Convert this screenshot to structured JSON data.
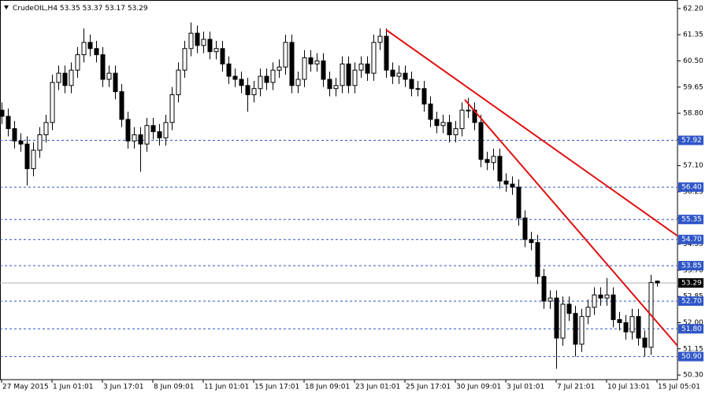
{
  "chart_data": {
    "type": "candlestick",
    "title": "CrudeOIL,H4",
    "categories": [
      "27 May 2015",
      null,
      null,
      null,
      null,
      null,
      null,
      null,
      "1 Jun 01:01",
      null,
      null,
      null,
      null,
      null,
      null,
      null,
      "3 Jun 17:01",
      null,
      null,
      null,
      null,
      null,
      null,
      null,
      "8 Jun 09:01",
      null,
      null,
      null,
      null,
      null,
      null,
      null,
      "11 Jun 01:01",
      null,
      null,
      null,
      null,
      null,
      null,
      null,
      "15 Jun 17:01",
      null,
      null,
      null,
      null,
      null,
      null,
      null,
      "18 Jun 09:01",
      null,
      null,
      null,
      null,
      null,
      null,
      null,
      "23 Jun 01:01",
      null,
      null,
      null,
      null,
      null,
      null,
      null,
      "25 Jun 17:01",
      null,
      null,
      null,
      null,
      null,
      null,
      null,
      "30 Jun 09:01",
      null,
      null,
      null,
      null,
      null,
      null,
      null,
      "3 Jul 01:01",
      null,
      null,
      null,
      null,
      null,
      null,
      null,
      "7 Jul 21:01",
      null,
      null,
      null,
      null,
      null,
      null,
      null,
      "10 Jul 13:01",
      null,
      null,
      null,
      null,
      null,
      null,
      null,
      "15 Jul 05:01"
    ],
    "open": [
      58.9,
      58.7,
      58.3,
      57.9,
      57.8,
      57.0,
      57.6,
      58.1,
      58.5,
      59.8,
      60.1,
      59.7,
      60.2,
      60.7,
      61.1,
      60.9,
      60.7,
      59.9,
      60.1,
      59.5,
      58.6,
      57.9,
      58.1,
      57.8,
      58.4,
      58.2,
      58.0,
      58.5,
      59.4,
      60.2,
      60.9,
      61.4,
      61.0,
      61.2,
      60.8,
      60.9,
      60.4,
      60.0,
      59.9,
      59.7,
      59.4,
      59.6,
      60.0,
      59.8,
      60.2,
      60.3,
      61.1,
      59.7,
      59.9,
      60.6,
      60.4,
      60.5,
      59.9,
      59.6,
      59.7,
      60.4,
      59.7,
      60.2,
      60.4,
      60.1,
      61.1,
      61.3,
      60.2,
      60.0,
      60.1,
      59.9,
      59.6,
      59.6,
      59.1,
      58.6,
      58.4,
      58.5,
      58.1,
      58.3,
      58.9,
      58.9,
      58.5,
      57.3,
      57.2,
      57.4,
      56.6,
      56.5,
      56.4,
      55.4,
      54.7,
      54.6,
      53.5,
      52.7,
      52.8,
      51.5,
      52.6,
      52.3,
      51.3,
      52.2,
      52.5,
      52.9,
      52.8,
      52.9,
      52.1,
      52.0,
      51.7,
      52.2,
      51.5,
      51.2,
      53.35
    ],
    "high": [
      59.15,
      58.95,
      58.55,
      58.15,
      58.05,
      57.85,
      58.35,
      58.75,
      60.05,
      60.35,
      60.35,
      60.45,
      60.95,
      61.55,
      61.35,
      61.15,
      60.95,
      60.35,
      60.35,
      59.75,
      58.85,
      58.35,
      58.35,
      58.65,
      58.65,
      58.45,
      58.75,
      59.65,
      60.45,
      61.15,
      61.75,
      61.65,
      61.45,
      61.45,
      61.15,
      61.15,
      60.65,
      60.25,
      60.15,
      59.95,
      59.85,
      60.25,
      60.25,
      60.45,
      60.55,
      61.35,
      61.35,
      60.15,
      60.85,
      60.85,
      60.75,
      60.75,
      60.15,
      59.95,
      60.65,
      60.65,
      60.45,
      60.65,
      60.65,
      61.35,
      61.55,
      61.55,
      60.45,
      60.35,
      60.35,
      60.15,
      59.85,
      59.85,
      59.35,
      58.85,
      58.75,
      58.75,
      58.55,
      59.15,
      59.3,
      59.15,
      58.75,
      57.55,
      57.65,
      57.65,
      56.85,
      56.75,
      56.65,
      55.65,
      54.95,
      54.85,
      53.75,
      53.05,
      53.05,
      52.85,
      52.85,
      52.55,
      52.45,
      52.75,
      53.15,
      53.15,
      53.45,
      53.15,
      52.35,
      52.25,
      52.45,
      52.45,
      51.75,
      53.55,
      53.37
    ],
    "low": [
      58.45,
      58.05,
      57.65,
      57.55,
      56.45,
      56.75,
      57.35,
      57.85,
      58.25,
      59.55,
      59.45,
      59.45,
      59.95,
      60.45,
      60.65,
      60.45,
      59.65,
      59.65,
      59.25,
      58.35,
      57.65,
      57.65,
      56.9,
      57.55,
      57.95,
      57.75,
      57.75,
      58.25,
      59.15,
      59.95,
      60.65,
      60.75,
      60.75,
      60.55,
      60.55,
      60.15,
      59.75,
      59.65,
      59.45,
      58.85,
      59.15,
      59.35,
      59.55,
      59.55,
      59.95,
      60.05,
      59.45,
      59.45,
      59.65,
      60.15,
      60.15,
      59.65,
      59.35,
      59.35,
      59.45,
      59.45,
      59.45,
      59.95,
      59.85,
      59.85,
      60.85,
      59.95,
      59.75,
      59.75,
      59.65,
      59.35,
      59.35,
      58.85,
      58.35,
      58.15,
      58.15,
      57.85,
      57.85,
      58.05,
      58.65,
      58.25,
      57.05,
      56.95,
      56.95,
      56.35,
      56.25,
      56.15,
      55.15,
      54.45,
      54.35,
      53.25,
      52.45,
      52.45,
      50.5,
      51.25,
      52.05,
      50.9,
      51.05,
      51.95,
      52.25,
      52.55,
      52.55,
      51.85,
      51.75,
      51.45,
      51.45,
      51.25,
      50.9,
      50.95,
      53.17
    ],
    "close": [
      58.7,
      58.3,
      57.9,
      57.8,
      57.0,
      57.6,
      58.1,
      58.5,
      59.8,
      60.1,
      59.7,
      60.2,
      60.7,
      61.1,
      60.9,
      60.7,
      59.9,
      60.1,
      59.5,
      58.6,
      57.9,
      58.1,
      57.8,
      58.4,
      58.2,
      58.0,
      58.5,
      59.4,
      60.2,
      60.9,
      61.4,
      61.0,
      61.2,
      60.8,
      60.9,
      60.4,
      60.0,
      59.9,
      59.7,
      59.4,
      59.6,
      60.0,
      59.8,
      60.2,
      60.3,
      61.1,
      59.7,
      59.9,
      60.6,
      60.4,
      60.5,
      59.9,
      59.6,
      59.7,
      60.4,
      59.7,
      60.2,
      60.4,
      60.1,
      61.1,
      61.3,
      60.2,
      60.0,
      60.1,
      59.9,
      59.6,
      59.6,
      59.1,
      58.6,
      58.4,
      58.5,
      58.1,
      58.3,
      58.9,
      58.9,
      58.5,
      57.3,
      57.2,
      57.4,
      56.6,
      56.5,
      56.4,
      55.4,
      54.7,
      54.6,
      53.5,
      52.7,
      52.8,
      51.5,
      52.6,
      52.3,
      51.3,
      52.2,
      52.5,
      52.9,
      52.8,
      52.9,
      52.1,
      52.0,
      51.7,
      52.2,
      51.5,
      51.2,
      53.3,
      53.29
    ],
    "xlim": [
      -0.25,
      107.25
    ],
    "ylim": [
      50.15,
      62.4
    ],
    "yticks": [
      {
        "value": 62.2,
        "label": "62.20"
      },
      {
        "value": 61.35,
        "label": "61.35"
      },
      {
        "value": 60.5,
        "label": "60.50"
      },
      {
        "value": 59.65,
        "label": "59.65"
      },
      {
        "value": 58.8,
        "label": "58.80"
      },
      {
        "value": 57.95,
        "label": "57.95"
      },
      {
        "value": 57.1,
        "label": "57.10"
      },
      {
        "value": 56.25,
        "label": "56.25"
      },
      {
        "value": 55.4,
        "label": "55.40"
      },
      {
        "value": 54.55,
        "label": "54.55"
      },
      {
        "value": 53.7,
        "label": "53.70"
      },
      {
        "value": 52.85,
        "label": "52.85"
      },
      {
        "value": 52.0,
        "label": "52.00"
      },
      {
        "value": 51.15,
        "label": "51.15"
      },
      {
        "value": 50.3,
        "label": "50.30"
      }
    ],
    "levels": [
      {
        "value": 57.92,
        "label": "57.92"
      },
      {
        "value": 56.4,
        "label": "56.40"
      },
      {
        "value": 55.35,
        "label": "55.35"
      },
      {
        "value": 54.7,
        "label": "54.70"
      },
      {
        "value": 53.85,
        "label": "53.85"
      },
      {
        "value": 52.7,
        "label": "52.70"
      },
      {
        "value": 51.8,
        "label": "51.80"
      },
      {
        "value": 50.9,
        "label": "50.90"
      }
    ],
    "trendlines": [
      {
        "x": [
          61,
          107.25
        ],
        "y": [
          61.51,
          54.82
        ]
      },
      {
        "x": [
          73.5,
          107.25
        ],
        "y": [
          59.24,
          51.25
        ]
      }
    ],
    "up_color": "#ffffff",
    "down_color": "#000000",
    "level_color": "#2f56c8",
    "trendline_color": "#e01010"
  }
}
